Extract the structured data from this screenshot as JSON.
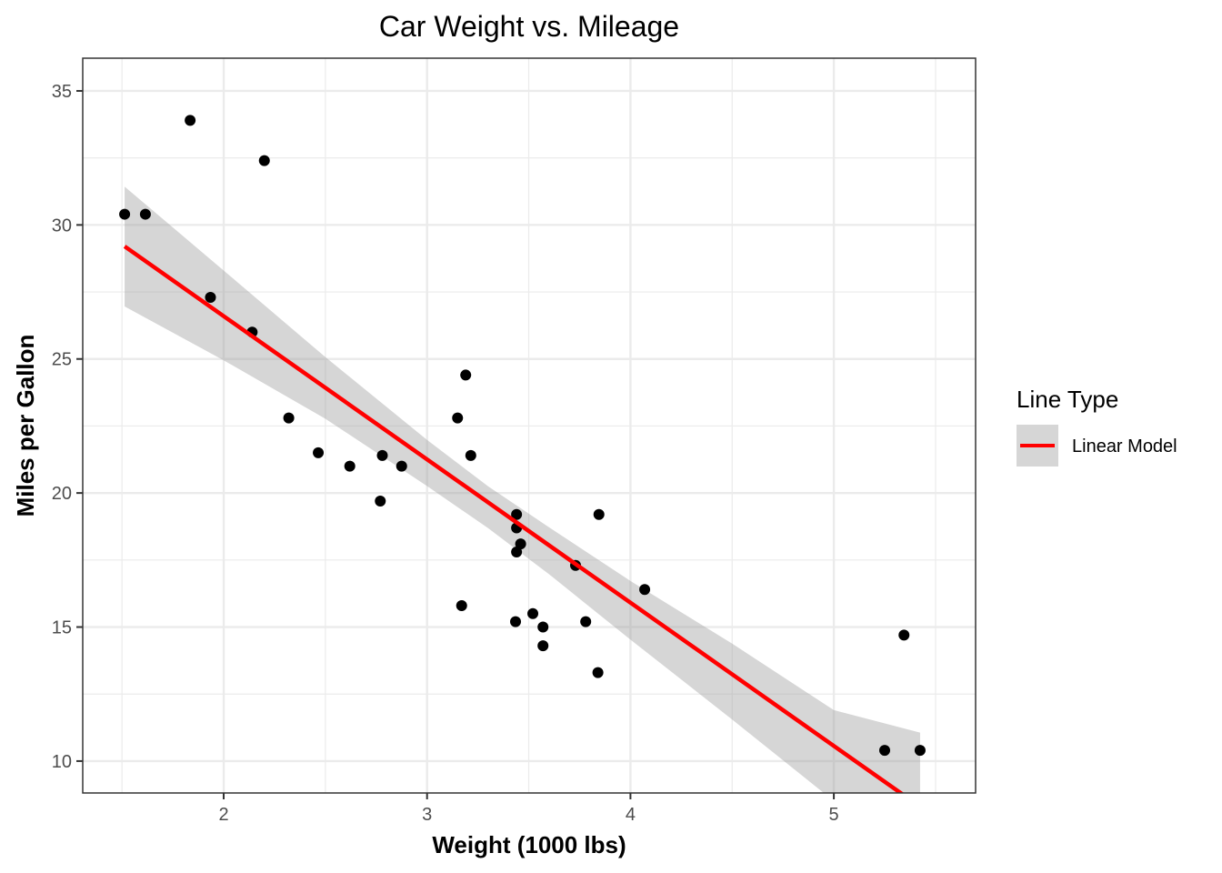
{
  "chart_data": {
    "type": "scatter",
    "title": "Car Weight vs. Mileage",
    "xlabel": "Weight (1000 lbs)",
    "ylabel": "Miles per Gallon",
    "xlim": [
      1.307,
      5.697
    ],
    "ylim": [
      8.81,
      36.22
    ],
    "x_ticks": [
      2,
      3,
      4,
      5
    ],
    "x_tick_labels": [
      "2",
      "3",
      "4",
      "5"
    ],
    "x_minor": [
      1.5,
      2.5,
      3.5,
      4.5,
      5.5
    ],
    "y_ticks": [
      10,
      15,
      20,
      25,
      30,
      35
    ],
    "y_tick_labels": [
      "10",
      "15",
      "20",
      "25",
      "30",
      "35"
    ],
    "y_minor": [
      12.5,
      17.5,
      22.5,
      27.5,
      32.5
    ],
    "grid": true,
    "points": {
      "x": [
        2.62,
        2.875,
        2.32,
        3.215,
        3.44,
        3.46,
        3.57,
        3.19,
        3.15,
        3.44,
        3.44,
        4.07,
        3.73,
        3.78,
        5.25,
        5.424,
        5.345,
        2.2,
        1.615,
        1.835,
        2.465,
        3.52,
        3.435,
        3.84,
        3.845,
        1.935,
        2.14,
        1.513,
        3.17,
        2.77,
        3.57,
        2.78
      ],
      "y": [
        21.0,
        21.0,
        22.8,
        21.4,
        18.7,
        18.1,
        14.3,
        24.4,
        22.8,
        19.2,
        17.8,
        16.4,
        17.3,
        15.2,
        10.4,
        10.4,
        14.7,
        32.4,
        30.4,
        33.9,
        21.5,
        15.5,
        15.2,
        13.3,
        19.2,
        27.3,
        26.0,
        30.4,
        15.8,
        19.7,
        15.0,
        21.4
      ],
      "color": "#000000"
    },
    "series": [
      {
        "name": "Linear Model",
        "type": "line",
        "intercept": 37.285,
        "slope": -5.344,
        "x_range": [
          1.513,
          5.424
        ],
        "color": "#ff0000",
        "confidence_band": {
          "level": 0.95,
          "color": "#999999",
          "opacity": 0.4,
          "x": [
            1.513,
            2.0,
            2.5,
            3.0,
            3.3,
            3.6,
            4.0,
            4.5,
            5.0,
            5.424
          ],
          "lower": [
            26.96,
            24.95,
            22.77,
            20.26,
            18.69,
            16.97,
            14.53,
            11.55,
            8.51,
            5.91
          ],
          "upper": [
            31.43,
            28.3,
            25.07,
            21.98,
            20.25,
            18.72,
            16.72,
            14.38,
            11.9,
            11.06
          ]
        }
      }
    ],
    "legend": {
      "title": "Line Type",
      "entries": [
        "Linear Model"
      ],
      "placement": "right"
    }
  }
}
